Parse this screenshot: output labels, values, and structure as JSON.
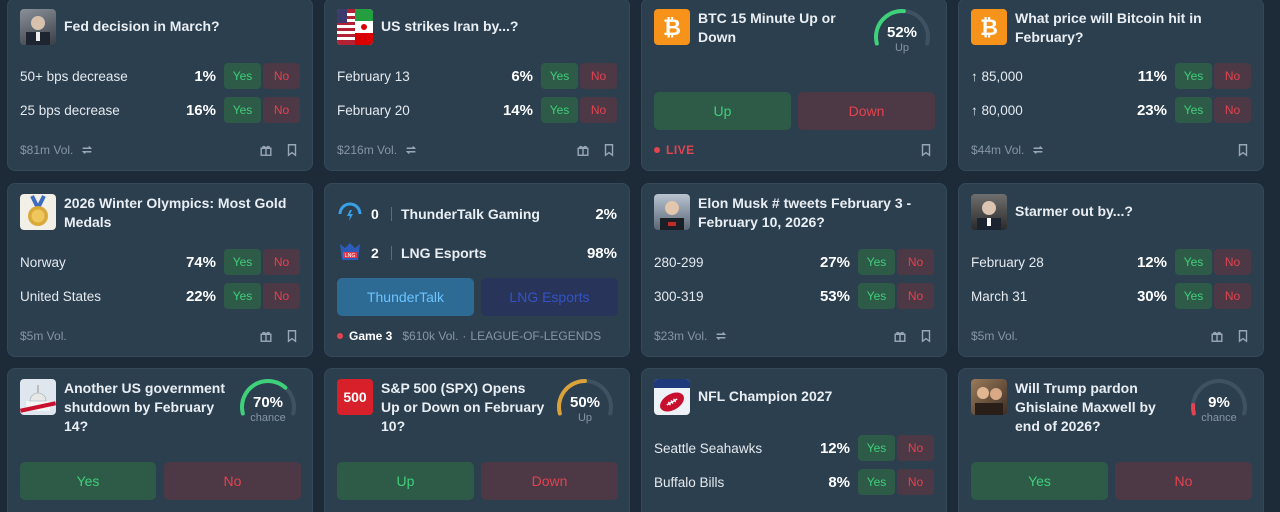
{
  "cards": {
    "fed": {
      "title": "Fed decision in March?",
      "volume": "$81m Vol.",
      "yes": "Yes",
      "no": "No",
      "outcomes": [
        {
          "label": "50+ bps decrease",
          "pct": "1%"
        },
        {
          "label": "25 bps decrease",
          "pct": "16%"
        }
      ]
    },
    "iran": {
      "title": "US strikes Iran by...?",
      "volume": "$216m Vol.",
      "yes": "Yes",
      "no": "No",
      "outcomes": [
        {
          "label": "February 13",
          "pct": "6%"
        },
        {
          "label": "February 20",
          "pct": "14%"
        }
      ]
    },
    "btc15": {
      "title": "BTC 15 Minute Up or Down",
      "chance": "52%",
      "chance_label": "Up",
      "chance_value": 52,
      "up": "Up",
      "down": "Down",
      "live": "LIVE"
    },
    "btcfeb": {
      "title": "What price will Bitcoin hit in February?",
      "volume": "$44m Vol.",
      "yes": "Yes",
      "no": "No",
      "outcomes": [
        {
          "label": "↑ 85,000",
          "pct": "11%"
        },
        {
          "label": "↑ 80,000",
          "pct": "23%"
        }
      ]
    },
    "olympics": {
      "title": "2026 Winter Olympics: Most Gold Medals",
      "volume": "$5m Vol.",
      "yes": "Yes",
      "no": "No",
      "outcomes": [
        {
          "label": "Norway",
          "pct": "74%"
        },
        {
          "label": "United States",
          "pct": "22%"
        }
      ]
    },
    "esports": {
      "teams": [
        {
          "score": "0",
          "name": "ThunderTalk Gaming",
          "pct": "2%"
        },
        {
          "score": "2",
          "name": "LNG Esports",
          "pct": "98%"
        }
      ],
      "btn_a": "ThunderTalk",
      "btn_b": "LNG Esports",
      "game": "Game 3",
      "volume": "$610k Vol.",
      "league": "LEAGUE-OF-LEGENDS"
    },
    "musk": {
      "title": "Elon Musk # tweets February 3 - February 10, 2026?",
      "volume": "$23m Vol.",
      "yes": "Yes",
      "no": "No",
      "outcomes": [
        {
          "label": "280-299",
          "pct": "27%"
        },
        {
          "label": "300-319",
          "pct": "53%"
        }
      ]
    },
    "starmer": {
      "title": "Starmer out by...?",
      "volume": "$5m Vol.",
      "yes": "Yes",
      "no": "No",
      "outcomes": [
        {
          "label": "February 28",
          "pct": "12%"
        },
        {
          "label": "March 31",
          "pct": "30%"
        }
      ]
    },
    "shutdown": {
      "title": "Another US government shutdown by February 14?",
      "chance": "70%",
      "chance_label": "chance",
      "chance_value": 70,
      "yes": "Yes",
      "no": "No"
    },
    "spx": {
      "title": "S&P 500 (SPX) Opens Up or Down on February 10?",
      "logo_text": "500",
      "chance": "50%",
      "chance_label": "Up",
      "chance_value": 50,
      "up": "Up",
      "down": "Down"
    },
    "nfl": {
      "title": "NFL Champion 2027",
      "yes": "Yes",
      "no": "No",
      "outcomes": [
        {
          "label": "Seattle Seahawks",
          "pct": "12%"
        },
        {
          "label": "Buffalo Bills",
          "pct": "8%"
        }
      ]
    },
    "trump": {
      "title": "Will Trump pardon Ghislaine Maxwell by end of 2026?",
      "chance": "9%",
      "chance_label": "chance",
      "chance_value": 9,
      "yes": "Yes",
      "no": "No"
    }
  },
  "colors": {
    "background": "#1d2b39",
    "card": "#2c3f4f",
    "yes": "#3fd07a",
    "no": "#e4434f",
    "gauge_track": "#3f5263"
  },
  "icons": [
    "gift-icon",
    "bookmark-icon",
    "repeat-icon",
    "bitcoin-icon",
    "football-icon"
  ]
}
